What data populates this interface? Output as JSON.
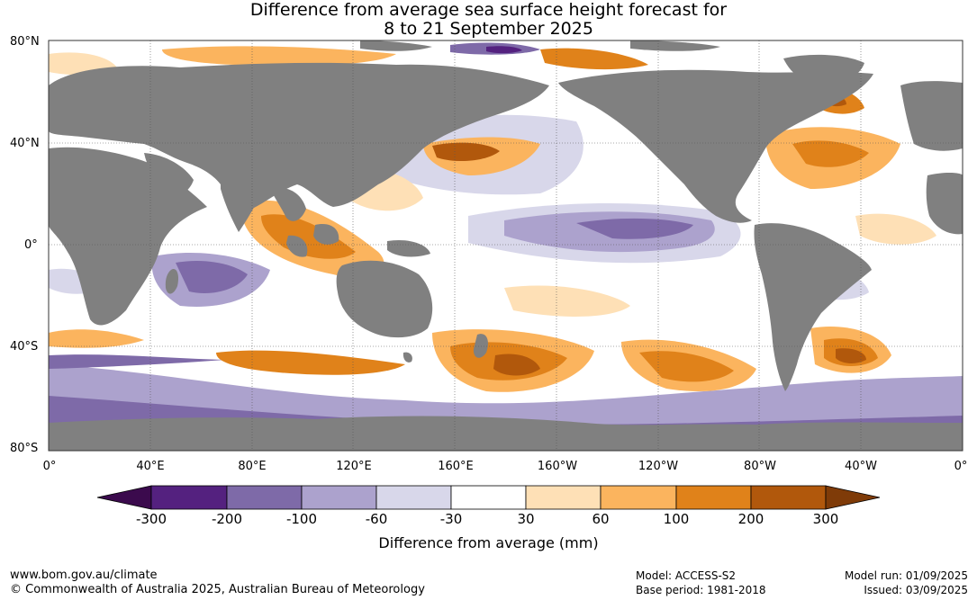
{
  "title_line1": "Difference from average sea surface height forecast for",
  "title_line2": "8 to 21 September 2025",
  "lat_labels": [
    "80°N",
    "40°N",
    "0°",
    "40°S",
    "80°S"
  ],
  "lon_labels": [
    "0°",
    "40°E",
    "80°E",
    "120°E",
    "160°E",
    "160°W",
    "120°W",
    "80°W",
    "40°W",
    "0°"
  ],
  "colorbar": {
    "label": "Difference from average (mm)",
    "ticks": [
      "-300",
      "-200",
      "-100",
      "-60",
      "-30",
      "30",
      "60",
      "100",
      "200",
      "300"
    ],
    "colors": [
      "#3b0a4d",
      "#54217f",
      "#7e6aa8",
      "#aca2cd",
      "#d8d7ea",
      "#ffffff",
      "#fee0b6",
      "#fbb45e",
      "#e0821a",
      "#b1580c",
      "#7f3b08"
    ]
  },
  "land_color": "#808080",
  "footer": {
    "url": "www.bom.gov.au/climate",
    "copyright": "© Commonwealth of Australia 2025, Australian Bureau of Meteorology",
    "model": "Model: ACCESS-S2",
    "base_period": "Base period: 1981-2018",
    "model_run": "Model run: 01/09/2025",
    "issued": "Issued: 03/09/2025"
  }
}
